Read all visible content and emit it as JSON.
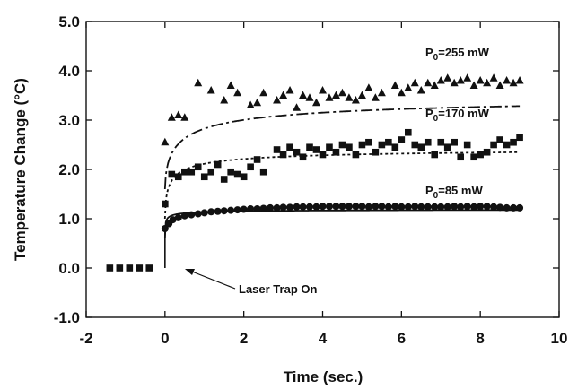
{
  "chart_data": {
    "type": "scatter",
    "xlabel": "Time (sec.)",
    "ylabel": "Temperature Change (°C)",
    "xlim": [
      -2,
      10
    ],
    "ylim": [
      -1.0,
      5.0
    ],
    "x_ticks": [
      -2,
      0,
      2,
      4,
      6,
      8,
      10
    ],
    "x_tick_labels": [
      "-2",
      "0",
      "2",
      "4",
      "6",
      "8",
      "10"
    ],
    "y_ticks": [
      -1.0,
      0.0,
      1.0,
      2.0,
      3.0,
      4.0,
      5.0
    ],
    "y_tick_labels": [
      "-1.0",
      "0.0",
      "1.0",
      "2.0",
      "3.0",
      "4.0",
      "5.0"
    ],
    "grid": false,
    "baseline": {
      "marker": "square",
      "x": [
        -1.4,
        -1.15,
        -0.9,
        -0.65,
        -0.4
      ],
      "y": [
        0,
        0,
        0,
        0,
        0
      ]
    },
    "series": [
      {
        "label_base": "P",
        "label_sub": "0",
        "label_rest": "=255 mW",
        "marker": "triangle",
        "line_style": "dashdot",
        "points_x": [
          0.0,
          0.17,
          0.34,
          0.5,
          0.84,
          1.17,
          1.5,
          1.67,
          1.84,
          2.17,
          2.34,
          2.5,
          2.84,
          3.0,
          3.17,
          3.34,
          3.5,
          3.67,
          3.84,
          4.0,
          4.17,
          4.34,
          4.5,
          4.67,
          4.84,
          5.0,
          5.17,
          5.34,
          5.5,
          5.84,
          6.0,
          6.17,
          6.34,
          6.5,
          6.67,
          6.84,
          7.0,
          7.17,
          7.34,
          7.5,
          7.67,
          7.84,
          8.0,
          8.17,
          8.34,
          8.5,
          8.67,
          8.84,
          9.0
        ],
        "points_y": [
          2.55,
          3.05,
          3.1,
          3.05,
          3.75,
          3.6,
          3.4,
          3.7,
          3.55,
          3.3,
          3.35,
          3.55,
          3.4,
          3.5,
          3.6,
          3.25,
          3.5,
          3.45,
          3.35,
          3.6,
          3.45,
          3.5,
          3.55,
          3.45,
          3.4,
          3.5,
          3.65,
          3.45,
          3.55,
          3.7,
          3.55,
          3.65,
          3.75,
          3.6,
          3.75,
          3.7,
          3.8,
          3.85,
          3.75,
          3.8,
          3.85,
          3.7,
          3.8,
          3.75,
          3.85,
          3.7,
          3.8,
          3.75,
          3.8
        ],
        "fit_t0": 0.0,
        "fit_y0": 1.6,
        "fit_a": 3.55,
        "fit_b": 0.59,
        "fit_p": 0.6
      },
      {
        "label_base": "P",
        "label_sub": "0",
        "label_rest": "=170 mW",
        "marker": "square",
        "line_style": "dotted",
        "points_x": [
          0.0,
          0.17,
          0.34,
          0.5,
          0.67,
          0.84,
          1.0,
          1.17,
          1.34,
          1.5,
          1.67,
          1.84,
          2.0,
          2.17,
          2.34,
          2.5,
          2.84,
          3.0,
          3.17,
          3.34,
          3.5,
          3.67,
          3.84,
          4.0,
          4.17,
          4.34,
          4.5,
          4.67,
          4.84,
          5.0,
          5.17,
          5.34,
          5.5,
          5.67,
          5.84,
          6.0,
          6.17,
          6.34,
          6.5,
          6.67,
          6.84,
          7.0,
          7.17,
          7.34,
          7.5,
          7.67,
          7.84,
          8.0,
          8.17,
          8.34,
          8.5,
          8.67,
          8.84,
          9.0
        ],
        "points_y": [
          1.3,
          1.9,
          1.85,
          1.95,
          1.95,
          2.05,
          1.85,
          1.95,
          2.1,
          1.8,
          1.95,
          1.9,
          1.85,
          2.05,
          2.2,
          1.95,
          2.4,
          2.3,
          2.45,
          2.35,
          2.25,
          2.45,
          2.4,
          2.3,
          2.45,
          2.35,
          2.5,
          2.45,
          2.3,
          2.5,
          2.55,
          2.35,
          2.5,
          2.55,
          2.45,
          2.6,
          2.75,
          2.5,
          2.45,
          2.55,
          2.3,
          2.55,
          2.45,
          2.55,
          2.25,
          2.5,
          2.25,
          2.3,
          2.35,
          2.5,
          2.6,
          2.5,
          2.55,
          2.65
        ],
        "fit_t0": 0.0,
        "fit_y0": 1.0,
        "fit_a": 2.46,
        "fit_b": 0.31,
        "fit_p": 0.6
      },
      {
        "label_base": "P",
        "label_sub": "0",
        "label_rest": "=85 mW",
        "marker": "circle",
        "line_style": "solid",
        "points_x": [
          0.0,
          0.1,
          0.2,
          0.34,
          0.5,
          0.67,
          0.84,
          1.0,
          1.17,
          1.34,
          1.5,
          1.67,
          1.84,
          2.0,
          2.17,
          2.34,
          2.5,
          2.67,
          2.84,
          3.0,
          3.17,
          3.34,
          3.5,
          3.67,
          3.84,
          4.0,
          4.17,
          4.34,
          4.5,
          4.67,
          4.84,
          5.0,
          5.17,
          5.34,
          5.5,
          5.67,
          5.84,
          6.0,
          6.17,
          6.34,
          6.5,
          6.67,
          6.84,
          7.0,
          7.17,
          7.34,
          7.5,
          7.67,
          7.84,
          8.0,
          8.17,
          8.34,
          8.5,
          8.67,
          8.84,
          9.0
        ],
        "points_y": [
          0.8,
          0.9,
          0.98,
          1.02,
          1.06,
          1.08,
          1.1,
          1.12,
          1.14,
          1.15,
          1.16,
          1.17,
          1.18,
          1.19,
          1.2,
          1.2,
          1.21,
          1.22,
          1.22,
          1.23,
          1.23,
          1.24,
          1.24,
          1.24,
          1.24,
          1.25,
          1.25,
          1.25,
          1.25,
          1.25,
          1.25,
          1.25,
          1.24,
          1.25,
          1.25,
          1.24,
          1.25,
          1.24,
          1.24,
          1.25,
          1.24,
          1.24,
          1.24,
          1.24,
          1.24,
          1.25,
          1.24,
          1.25,
          1.24,
          1.25,
          1.25,
          1.24,
          1.23,
          1.22,
          1.22,
          1.22
        ],
        "fit_t0": 0.0,
        "fit_y0": 0.6,
        "fit_a": 1.2,
        "fit_b": 0.12,
        "fit_p": 0.5
      }
    ],
    "annotation": {
      "text": "Laser Trap On",
      "arrow_to_x": 0.0,
      "arrow_to_y": 0.0
    }
  }
}
